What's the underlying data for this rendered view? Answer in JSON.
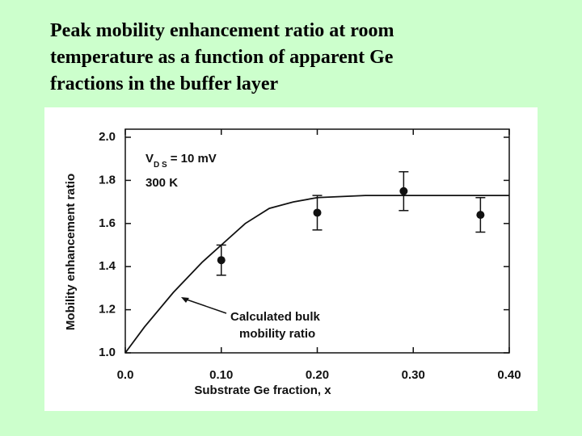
{
  "title_lines": [
    "Peak mobility enhancement ratio at room",
    "temperature as a function of apparent Ge",
    "fractions in the buffer layer"
  ],
  "chart_data": {
    "type": "scatter",
    "x_label": "Substrate Ge fraction, x",
    "y_label": "Mobility enhancement ratio",
    "condition_label": {
      "main": "V",
      "sub": "D S",
      "rest": "= 10 mV"
    },
    "temperature_label": "300 K",
    "curve_annotation": [
      "Calculated bulk",
      "mobility ratio"
    ],
    "xlim": [
      0,
      0.4
    ],
    "ylim": [
      1.0,
      2.0
    ],
    "xticks": [
      {
        "value": 0,
        "label": "0.0"
      },
      {
        "value": 0.1,
        "label": "0.10"
      },
      {
        "value": 0.2,
        "label": "0.20"
      },
      {
        "value": 0.3,
        "label": "0.30"
      },
      {
        "value": 0.4,
        "label": "0.40"
      }
    ],
    "yticks": [
      {
        "value": 1.0,
        "label": "1.0"
      },
      1.2,
      1.4,
      1.6,
      1.8,
      {
        "value": 2.0,
        "label": "2.0"
      }
    ],
    "points": {
      "x": [
        0.1,
        0.2,
        0.29,
        0.37
      ],
      "y": [
        1.43,
        1.65,
        1.75,
        1.64
      ],
      "error": [
        0.07,
        0.08,
        0.09,
        0.08
      ],
      "color": "#111111"
    },
    "curve": {
      "x": [
        0,
        0.02,
        0.05,
        0.08,
        0.1,
        0.125,
        0.15,
        0.175,
        0.2,
        0.25,
        0.3,
        0.4
      ],
      "y": [
        1.0,
        1.12,
        1.28,
        1.42,
        1.5,
        1.6,
        1.67,
        1.7,
        1.72,
        1.73,
        1.73,
        1.73
      ],
      "color": "#111111"
    }
  }
}
